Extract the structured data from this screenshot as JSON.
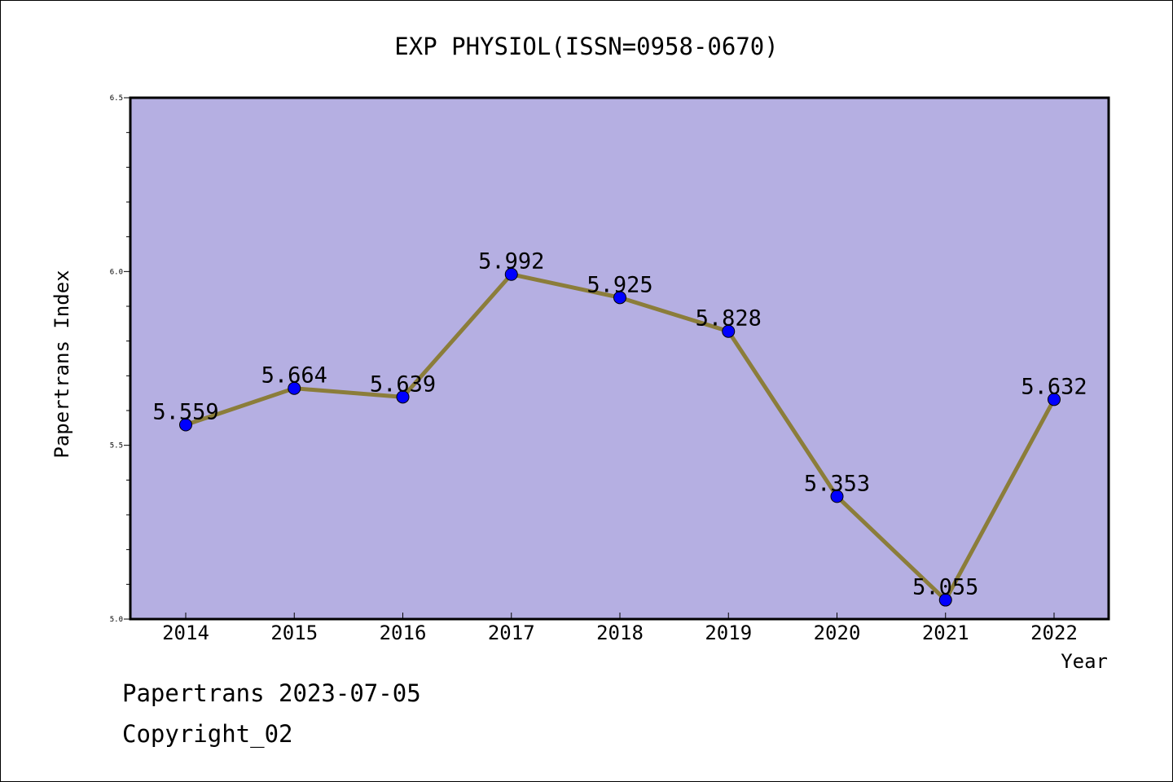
{
  "chart_data": {
    "type": "line",
    "title": "EXP PHYSIOL(ISSN=0958-0670)",
    "xlabel": "Year",
    "ylabel": "Papertrans Index",
    "categories": [
      "2014",
      "2015",
      "2016",
      "2017",
      "2018",
      "2019",
      "2020",
      "2021",
      "2022"
    ],
    "series": [
      {
        "values": [
          5.559,
          5.664,
          5.639,
          5.992,
          5.925,
          5.828,
          5.353,
          5.055,
          5.632
        ]
      }
    ],
    "data_labels": [
      "5.559",
      "5.664",
      "5.639",
      "5.992",
      "5.925",
      "5.828",
      "5.353",
      "5.055",
      "5.632"
    ],
    "ylim": [
      5.0,
      6.5
    ],
    "yticks": [
      "5.0",
      "5.5",
      "6.0",
      "6.5"
    ],
    "grid": false,
    "legend": "none",
    "colors": {
      "plot_background": "#b5afe2",
      "line": "#8b7d3a",
      "marker": "#0000ff"
    }
  },
  "footer": {
    "line1": "Papertrans 2023-07-05",
    "line2": "Copyright_02"
  }
}
